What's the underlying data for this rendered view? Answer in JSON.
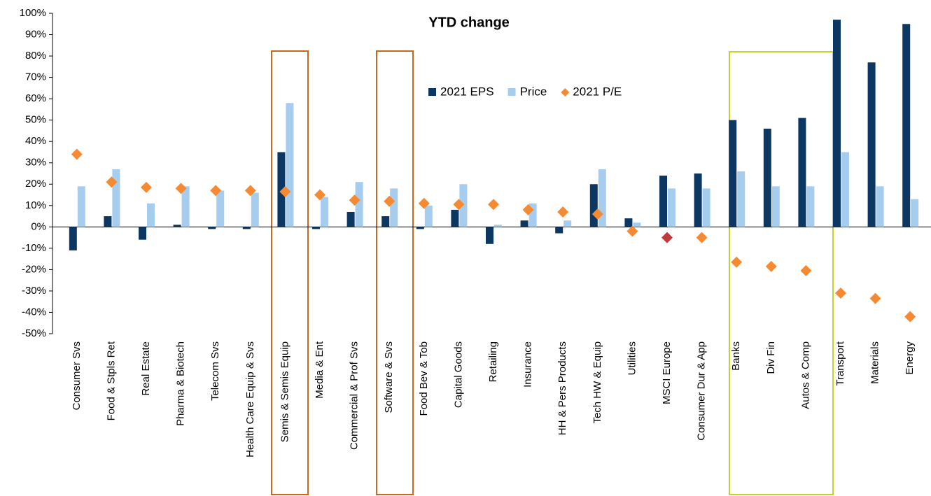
{
  "chart_data": {
    "type": "bar_scatter",
    "title": "YTD change",
    "categories": [
      "Consumer Svs",
      "Food & Stpls Ret",
      "Real Estate",
      "Pharma & Biotech",
      "Telecom Svs",
      "Health Care Equip & Svs",
      "Semis & Semis Equip",
      "Media & Ent",
      "Commercial & Prof Svs",
      "Software & Svs",
      "Food Bev & Tob",
      "Capital Goods",
      "Retailing",
      "Insurance",
      "HH & Pers Products",
      "Tech HW & Equip",
      "Utilities",
      "MSCI Europe",
      "Consumer Dur & App",
      "Banks",
      "Div Fin",
      "Autos & Comp",
      "Transport",
      "Materials",
      "Energy"
    ],
    "series": [
      {
        "name": "2021 EPS",
        "kind": "bar",
        "color": "#0d3763",
        "values": [
          -11,
          5,
          -6,
          1,
          -1,
          -1,
          35,
          -1,
          7,
          5,
          -1,
          8,
          -8,
          3,
          -3,
          20,
          4,
          24,
          25,
          50,
          46,
          51,
          97,
          77,
          95
        ]
      },
      {
        "name": "Price",
        "kind": "bar",
        "color": "#a6cdee",
        "values": [
          19,
          27,
          11,
          19,
          17,
          16,
          58,
          14,
          21,
          18,
          10,
          20,
          1,
          11,
          3,
          27,
          2,
          18,
          18,
          26,
          19,
          19,
          35,
          19,
          13
        ]
      },
      {
        "name": "2021 P/E",
        "kind": "diamond",
        "color": "#f58a33",
        "colors": [
          "#f58a33",
          "#f58a33",
          "#f58a33",
          "#f58a33",
          "#f58a33",
          "#f58a33",
          "#f58a33",
          "#f58a33",
          "#f58a33",
          "#f58a33",
          "#f58a33",
          "#f58a33",
          "#f58a33",
          "#f58a33",
          "#f58a33",
          "#f58a33",
          "#f58a33",
          "#c0393b",
          "#f58a33",
          "#f58a33",
          "#f58a33",
          "#f58a33",
          "#f58a33",
          "#f58a33",
          "#f58a33"
        ],
        "values": [
          34,
          21,
          18.5,
          18,
          17,
          17,
          16.5,
          15,
          12.5,
          12,
          11,
          10.5,
          10.5,
          8,
          7,
          6,
          -2,
          -5,
          -5,
          -16.5,
          -18.5,
          -20.5,
          -31,
          -33.5,
          -42
        ]
      }
    ],
    "ylim": [
      -50,
      100
    ],
    "yticks": [
      {
        "value": -50,
        "label": "-50%"
      },
      {
        "value": -40,
        "label": "-40%"
      },
      {
        "value": -30,
        "label": "-30%"
      },
      {
        "value": -20,
        "label": "-20%"
      },
      {
        "value": -10,
        "label": "-10%"
      },
      {
        "value": 0,
        "label": "0%"
      },
      {
        "value": 10,
        "label": "10%"
      },
      {
        "value": 20,
        "label": "20%"
      },
      {
        "value": 30,
        "label": "30%"
      },
      {
        "value": 40,
        "label": "40%"
      },
      {
        "value": 50,
        "label": "50%"
      },
      {
        "value": 60,
        "label": "60%"
      },
      {
        "value": 70,
        "label": "70%"
      },
      {
        "value": 80,
        "label": "80%"
      },
      {
        "value": 90,
        "label": "90%"
      },
      {
        "value": 100,
        "label": "100%"
      }
    ],
    "grid": false,
    "legend": "top-center"
  }
}
